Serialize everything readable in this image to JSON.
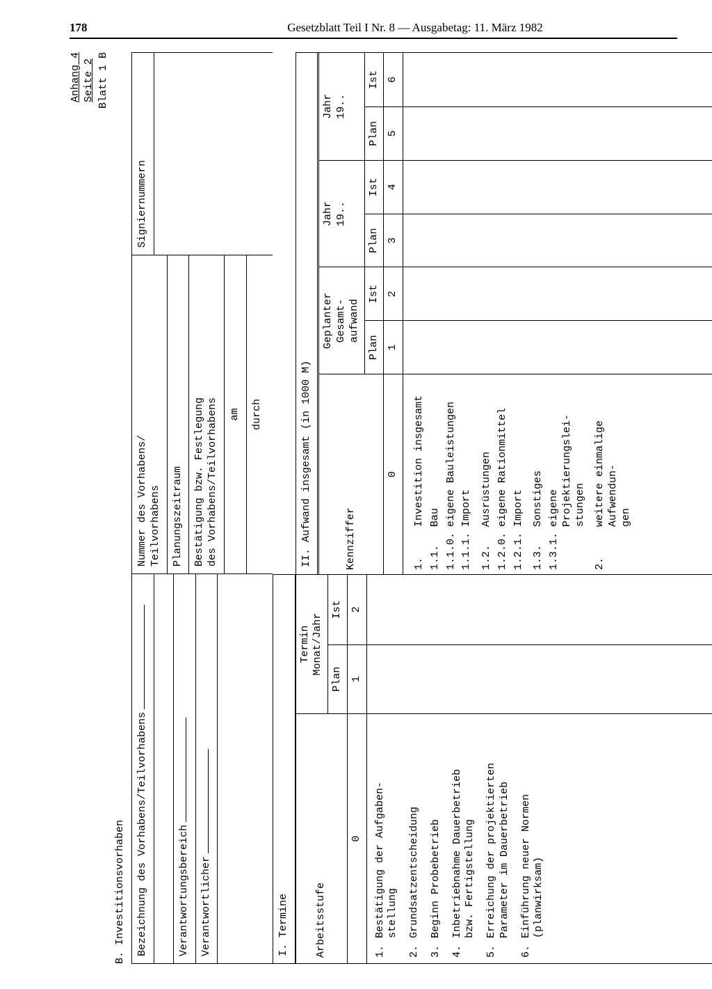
{
  "page_number": "178",
  "running_header": "Gesetzblatt Teil I Nr. 8 — Ausgabetag: 11. März 1982",
  "annex": {
    "line1": "Anhang 4",
    "line2": "Seite 2",
    "blatt": "Blatt 1 B"
  },
  "section_label": "B. Investitionsvorhaben",
  "header_left": {
    "bez": "Bezeichnung des Vorhabens/Teilvorhabens",
    "vbereich": "Verantwortungsbereich",
    "vwortlich": "Verantwortlicher"
  },
  "header_mid": {
    "nummer": "Nummer des Vorhabens/\nTeilvorhabens",
    "planungsz": "Planungszeitraum",
    "best": "Bestätigung bzw. Festlegung\ndes Vorhabens/Teilvorhabens",
    "am": "am",
    "durch": "durch"
  },
  "header_right": {
    "sig": "Signiernummern"
  },
  "sectionI": {
    "title": "I. Termine",
    "col_arbeit": "Arbeitsstufe",
    "col_termin": "Termin\nMonat/Jahr",
    "sub_plan": "Plan",
    "sub_ist": "Ist",
    "idx0": "0",
    "idx1": "1",
    "idx2": "2",
    "items": [
      {
        "n": "1.",
        "t": "Bestätigung der Aufgaben-\nstellung"
      },
      {
        "n": "2.",
        "t": "Grundsatzentscheidung"
      },
      {
        "n": "3.",
        "t": "Beginn Probebetrieb"
      },
      {
        "n": "4.",
        "t": "Inbetriebnahme Dauerbetrieb\nbzw. Fertigstellung"
      },
      {
        "n": "5.",
        "t": "Erreichung der projektierten\nParameter im Dauerbetrieb"
      },
      {
        "n": "6.",
        "t": "Einführung neuer Normen\n(planwirksam)"
      }
    ]
  },
  "sectionII": {
    "title": "II. Aufwand insgesamt (in 1000 M)",
    "col_kenn": "Kennziffer",
    "col_gep": "Geplanter\nGesamt-\naufwand",
    "col_jahr": "Jahr\n19..",
    "sub_plan": "Plan",
    "sub_ist": "Ist",
    "idx": {
      "c0": "0",
      "c1": "1",
      "c2": "2",
      "c3": "3",
      "c4": "4",
      "c5": "5",
      "c6": "6"
    },
    "items": [
      {
        "n": "1.",
        "t": "Investition insgesamt"
      },
      {
        "n": "1.1.",
        "t": "Bau"
      },
      {
        "n": "1.1.0.",
        "t": "eigene Bauleistungen"
      },
      {
        "n": "1.1.1.",
        "t": "Import"
      },
      {
        "n": "1.2.",
        "t": "Ausrüstungen"
      },
      {
        "n": "1.2.0.",
        "t": "eigene Rationmittel"
      },
      {
        "n": "1.2.1.",
        "t": "Import"
      },
      {
        "n": "1.3.",
        "t": "Sonstiges"
      },
      {
        "n": "1.3.1.",
        "t": "eigene Projektierungslei-\nstungen"
      },
      {
        "n": "2.",
        "t": "weitere einmalige Aufwendun-\ngen"
      }
    ]
  }
}
